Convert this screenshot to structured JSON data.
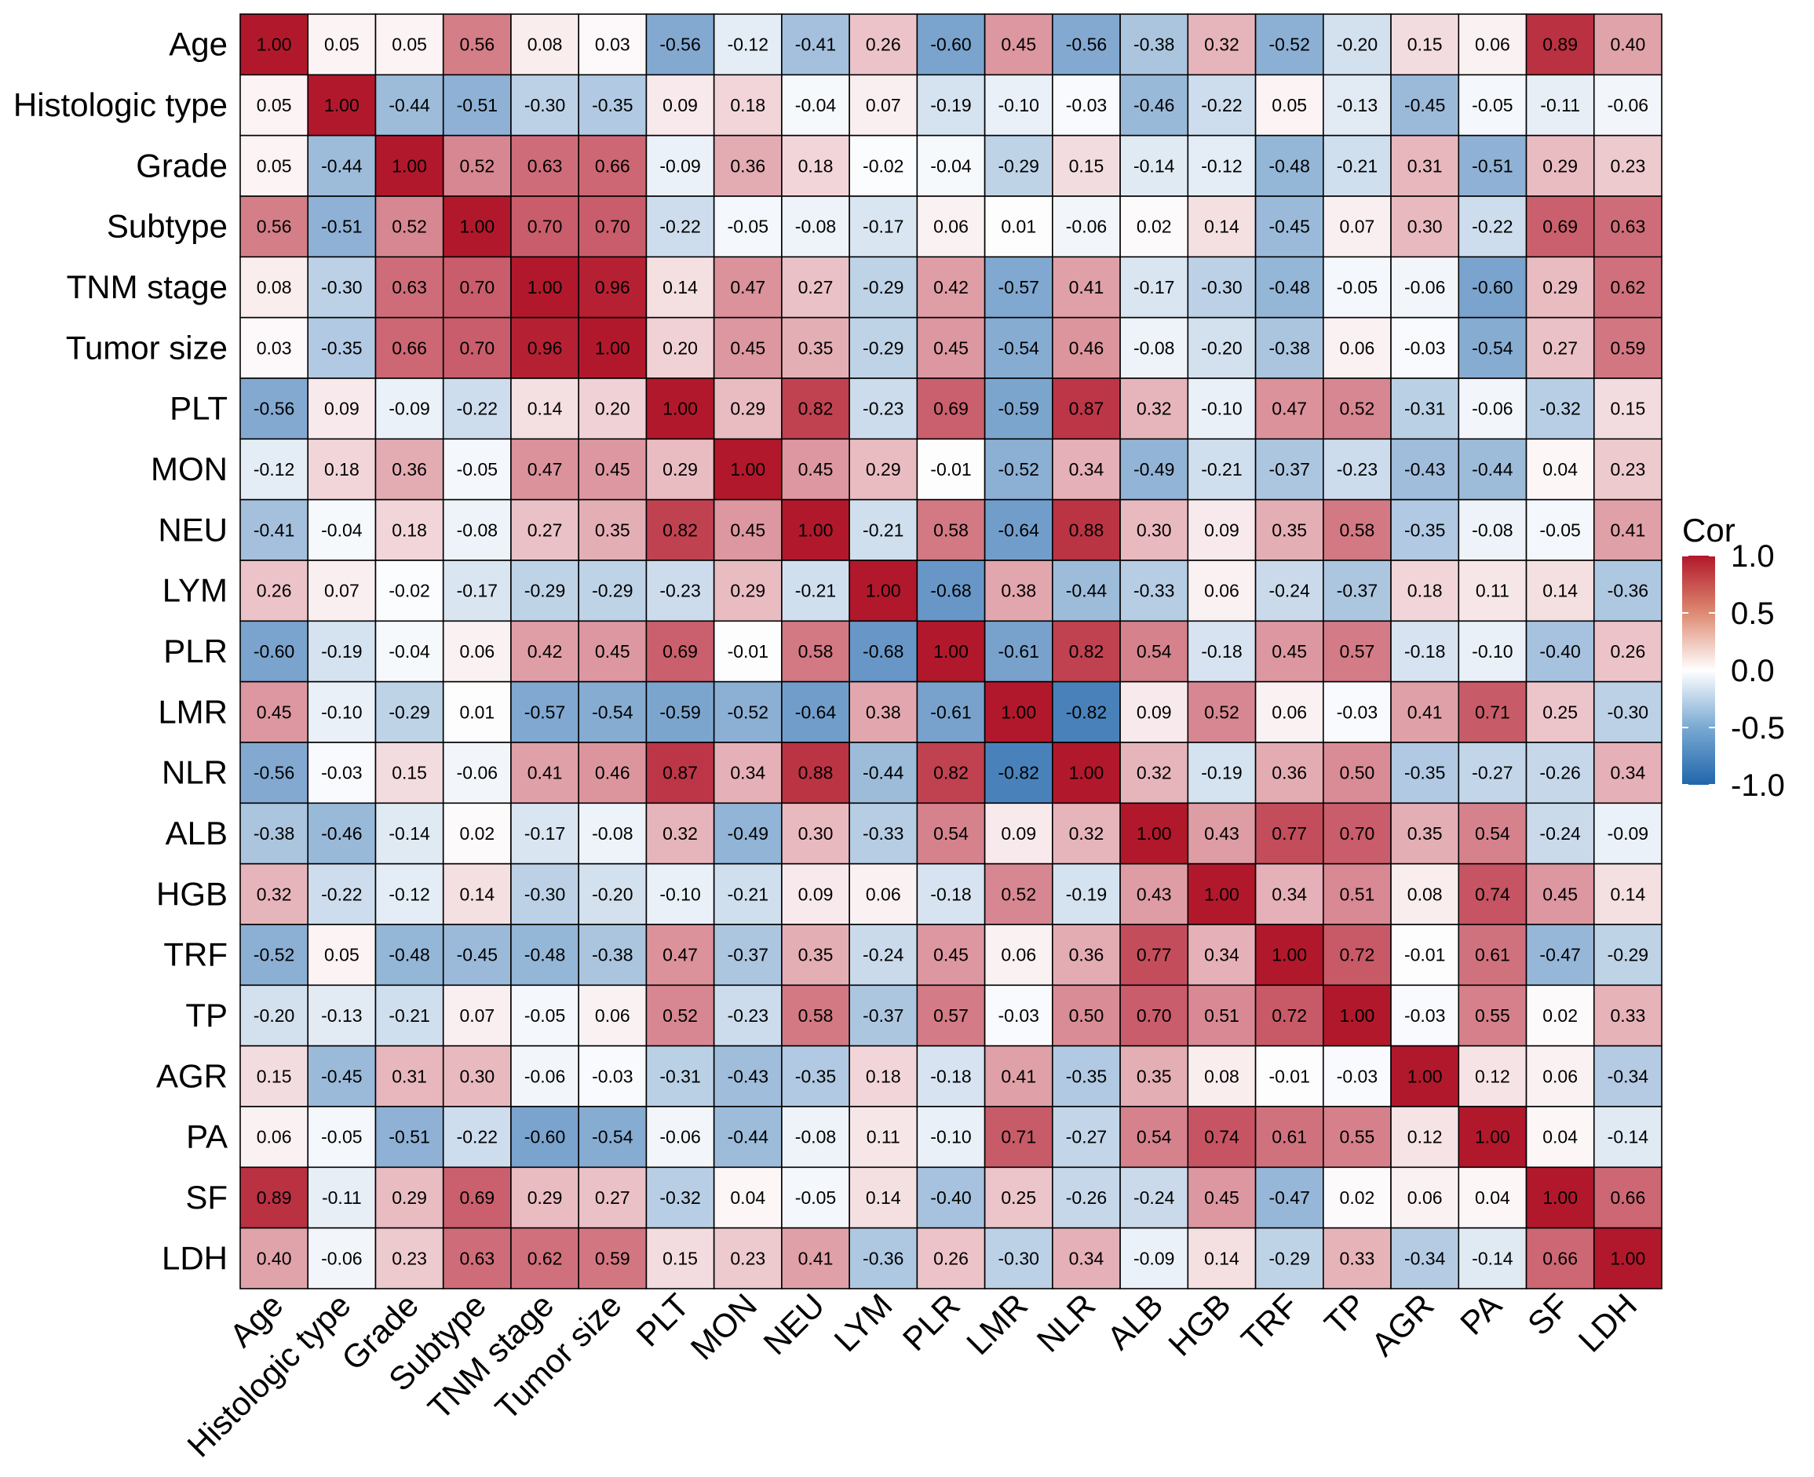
{
  "chart_data": {
    "type": "heatmap",
    "title": "",
    "labels": [
      "Age",
      "Histologic type",
      "Grade",
      "Subtype",
      "TNM stage",
      "Tumor size",
      "PLT",
      "MON",
      "NEU",
      "LYM",
      "PLR",
      "LMR",
      "NLR",
      "ALB",
      "HGB",
      "TRF",
      "TP",
      "AGR",
      "PA",
      "SF",
      "LDH"
    ],
    "values": [
      [
        1.0,
        0.05,
        0.05,
        0.56,
        0.08,
        0.03,
        -0.56,
        -0.12,
        -0.41,
        0.26,
        -0.6,
        0.45,
        -0.56,
        -0.38,
        0.32,
        -0.52,
        -0.2,
        0.15,
        0.06,
        0.89,
        0.4
      ],
      [
        0.05,
        1.0,
        -0.44,
        -0.51,
        -0.3,
        -0.35,
        0.09,
        0.18,
        -0.04,
        0.07,
        -0.19,
        -0.1,
        -0.03,
        -0.46,
        -0.22,
        0.05,
        -0.13,
        -0.45,
        -0.05,
        -0.11,
        -0.06
      ],
      [
        0.05,
        -0.44,
        1.0,
        0.52,
        0.63,
        0.66,
        -0.09,
        0.36,
        0.18,
        -0.02,
        -0.04,
        -0.29,
        0.15,
        -0.14,
        -0.12,
        -0.48,
        -0.21,
        0.31,
        -0.51,
        0.29,
        0.23
      ],
      [
        0.56,
        -0.51,
        0.52,
        1.0,
        0.7,
        0.7,
        -0.22,
        -0.05,
        -0.08,
        -0.17,
        0.06,
        0.01,
        -0.06,
        0.02,
        0.14,
        -0.45,
        0.07,
        0.3,
        -0.22,
        0.69,
        0.63
      ],
      [
        0.08,
        -0.3,
        0.63,
        0.7,
        1.0,
        0.96,
        0.14,
        0.47,
        0.27,
        -0.29,
        0.42,
        -0.57,
        0.41,
        -0.17,
        -0.3,
        -0.48,
        -0.05,
        -0.06,
        -0.6,
        0.29,
        0.62
      ],
      [
        0.03,
        -0.35,
        0.66,
        0.7,
        0.96,
        1.0,
        0.2,
        0.45,
        0.35,
        -0.29,
        0.45,
        -0.54,
        0.46,
        -0.08,
        -0.2,
        -0.38,
        0.06,
        -0.03,
        -0.54,
        0.27,
        0.59
      ],
      [
        -0.56,
        0.09,
        -0.09,
        -0.22,
        0.14,
        0.2,
        1.0,
        0.29,
        0.82,
        -0.23,
        0.69,
        -0.59,
        0.87,
        0.32,
        -0.1,
        0.47,
        0.52,
        -0.31,
        -0.06,
        -0.32,
        0.15
      ],
      [
        -0.12,
        0.18,
        0.36,
        -0.05,
        0.47,
        0.45,
        0.29,
        1.0,
        0.45,
        0.29,
        -0.01,
        -0.52,
        0.34,
        -0.49,
        -0.21,
        -0.37,
        -0.23,
        -0.43,
        -0.44,
        0.04,
        0.23
      ],
      [
        -0.41,
        -0.04,
        0.18,
        -0.08,
        0.27,
        0.35,
        0.82,
        0.45,
        1.0,
        -0.21,
        0.58,
        -0.64,
        0.88,
        0.3,
        0.09,
        0.35,
        0.58,
        -0.35,
        -0.08,
        -0.05,
        0.41
      ],
      [
        0.26,
        0.07,
        -0.02,
        -0.17,
        -0.29,
        -0.29,
        -0.23,
        0.29,
        -0.21,
        1.0,
        -0.68,
        0.38,
        -0.44,
        -0.33,
        0.06,
        -0.24,
        -0.37,
        0.18,
        0.11,
        0.14,
        -0.36
      ],
      [
        -0.6,
        -0.19,
        -0.04,
        0.06,
        0.42,
        0.45,
        0.69,
        -0.01,
        0.58,
        -0.68,
        1.0,
        -0.61,
        0.82,
        0.54,
        -0.18,
        0.45,
        0.57,
        -0.18,
        -0.1,
        -0.4,
        0.26
      ],
      [
        0.45,
        -0.1,
        -0.29,
        0.01,
        -0.57,
        -0.54,
        -0.59,
        -0.52,
        -0.64,
        0.38,
        -0.61,
        1.0,
        -0.82,
        0.09,
        0.52,
        0.06,
        -0.03,
        0.41,
        0.71,
        0.25,
        -0.3
      ],
      [
        -0.56,
        -0.03,
        0.15,
        -0.06,
        0.41,
        0.46,
        0.87,
        0.34,
        0.88,
        -0.44,
        0.82,
        -0.82,
        1.0,
        0.32,
        -0.19,
        0.36,
        0.5,
        -0.35,
        -0.27,
        -0.26,
        0.34
      ],
      [
        -0.38,
        -0.46,
        -0.14,
        0.02,
        -0.17,
        -0.08,
        0.32,
        -0.49,
        0.3,
        -0.33,
        0.54,
        0.09,
        0.32,
        1.0,
        0.43,
        0.77,
        0.7,
        0.35,
        0.54,
        -0.24,
        -0.09
      ],
      [
        0.32,
        -0.22,
        -0.12,
        0.14,
        -0.3,
        -0.2,
        -0.1,
        -0.21,
        0.09,
        0.06,
        -0.18,
        0.52,
        -0.19,
        0.43,
        1.0,
        0.34,
        0.51,
        0.08,
        0.74,
        0.45,
        0.14
      ],
      [
        -0.52,
        0.05,
        -0.48,
        -0.45,
        -0.48,
        -0.38,
        0.47,
        -0.37,
        0.35,
        -0.24,
        0.45,
        0.06,
        0.36,
        0.77,
        0.34,
        1.0,
        0.72,
        -0.01,
        0.61,
        -0.47,
        -0.29
      ],
      [
        -0.2,
        -0.13,
        -0.21,
        0.07,
        -0.05,
        0.06,
        0.52,
        -0.23,
        0.58,
        -0.37,
        0.57,
        -0.03,
        0.5,
        0.7,
        0.51,
        0.72,
        1.0,
        -0.03,
        0.55,
        0.02,
        0.33
      ],
      [
        0.15,
        -0.45,
        0.31,
        0.3,
        -0.06,
        -0.03,
        -0.31,
        -0.43,
        -0.35,
        0.18,
        -0.18,
        0.41,
        -0.35,
        0.35,
        0.08,
        -0.01,
        -0.03,
        1.0,
        0.12,
        0.06,
        -0.34
      ],
      [
        0.06,
        -0.05,
        -0.51,
        -0.22,
        -0.6,
        -0.54,
        -0.06,
        -0.44,
        -0.08,
        0.11,
        -0.1,
        0.71,
        -0.27,
        0.54,
        0.74,
        0.61,
        0.55,
        0.12,
        1.0,
        0.04,
        -0.14
      ],
      [
        0.89,
        -0.11,
        0.29,
        0.69,
        0.29,
        0.27,
        -0.32,
        0.04,
        -0.05,
        0.14,
        -0.4,
        0.25,
        -0.26,
        -0.24,
        0.45,
        -0.47,
        0.02,
        0.06,
        0.04,
        1.0,
        0.66
      ],
      [
        0.4,
        -0.06,
        0.23,
        0.63,
        0.62,
        0.59,
        0.15,
        0.23,
        0.41,
        -0.36,
        0.26,
        -0.3,
        0.34,
        -0.09,
        0.14,
        -0.29,
        0.33,
        -0.34,
        -0.14,
        0.66,
        1.0
      ]
    ],
    "value_range": [
      -1.0,
      1.0
    ],
    "legend": {
      "title": "Cor",
      "ticks": [
        "1.0",
        "0.5",
        "0.0",
        "-0.5",
        "-1.0"
      ],
      "tick_values": [
        1.0,
        0.5,
        0.0,
        -0.5,
        -1.0
      ],
      "placement": "right"
    },
    "colors": {
      "negative": "#2166ac",
      "zero": "#ffffff",
      "positive": "#b2182b",
      "grid": "#000000"
    }
  }
}
